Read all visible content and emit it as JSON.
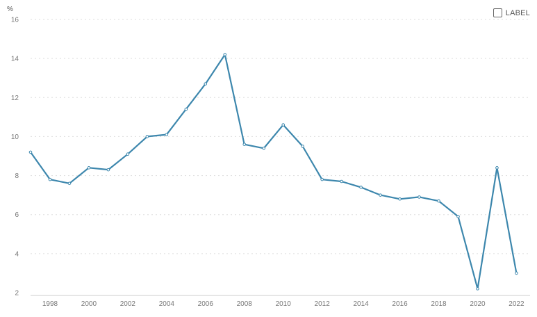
{
  "legend": {
    "label": "LABEL"
  },
  "chart_data": {
    "type": "line",
    "ylabel": "%",
    "ylim": [
      2,
      16
    ],
    "yticks": [
      2,
      4,
      6,
      8,
      10,
      12,
      14,
      16
    ],
    "xlim": [
      1997,
      2022.7
    ],
    "xticks": [
      1998,
      2000,
      2002,
      2004,
      2006,
      2008,
      2010,
      2012,
      2014,
      2016,
      2018,
      2020,
      2022
    ],
    "grid": true,
    "legend_position": "top-right",
    "x": [
      1997,
      1998,
      1999,
      2000,
      2001,
      2002,
      2003,
      2004,
      2005,
      2006,
      2007,
      2008,
      2009,
      2010,
      2011,
      2012,
      2013,
      2014,
      2015,
      2016,
      2017,
      2018,
      2019,
      2020,
      2021,
      2022
    ],
    "series": [
      {
        "values": [
          9.2,
          7.8,
          7.6,
          8.4,
          8.3,
          9.1,
          10.0,
          10.1,
          11.4,
          12.7,
          14.2,
          9.6,
          9.4,
          10.6,
          9.5,
          7.8,
          7.7,
          7.4,
          7.0,
          6.8,
          6.9,
          6.7,
          5.9,
          2.2,
          8.4,
          3.0
        ]
      }
    ],
    "colors": {
      "line": "#3d87ad",
      "grid": "#dddddd",
      "tick": "#777777"
    }
  }
}
